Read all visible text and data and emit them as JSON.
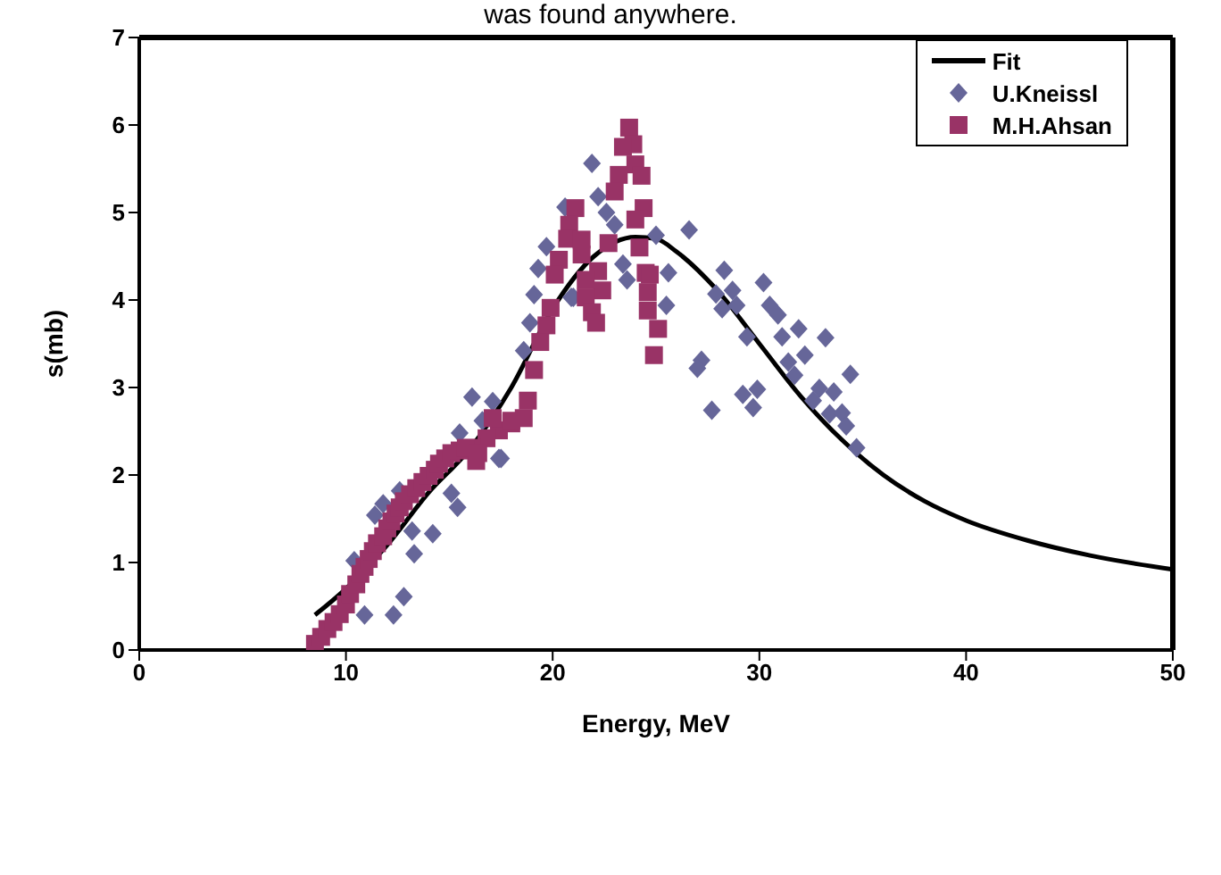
{
  "chart_data": {
    "type": "scatter",
    "title": "was found anywhere.",
    "xlabel": "Energy, MeV",
    "ylabel": "s(mb)",
    "xlim": [
      0,
      50
    ],
    "xticks": [
      0,
      10,
      20,
      30,
      40,
      50
    ],
    "ylim": [
      0,
      7
    ],
    "yticks": [
      0,
      1,
      2,
      3,
      4,
      5,
      6,
      7
    ],
    "grid": false,
    "legend": "top right",
    "series": [
      {
        "name": "Fit",
        "type": "line",
        "color": "#000000",
        "marker": "none",
        "line_style": "solid",
        "x": [
          8.5,
          10,
          12,
          14,
          16,
          18,
          20,
          22,
          24,
          25,
          26,
          28,
          30,
          32,
          34,
          36,
          38,
          40,
          43,
          46,
          50
        ],
        "values": [
          0.4,
          0.7,
          1.2,
          1.8,
          2.3,
          3.0,
          3.9,
          4.5,
          4.72,
          4.7,
          4.55,
          4.1,
          3.5,
          2.9,
          2.4,
          2.0,
          1.7,
          1.48,
          1.25,
          1.08,
          0.92
        ]
      },
      {
        "name": "U.Kneissl",
        "color": "#666699",
        "marker": "diamond",
        "x": [
          21.9,
          22.2,
          22.6,
          23.0,
          20.6,
          19.7,
          19.3,
          19.1,
          18.9,
          18.6,
          16.1,
          17.1,
          17.5,
          21.0,
          23.4,
          23.6,
          25.0,
          26.6,
          25.6,
          25.5,
          27.2,
          27.0,
          27.7,
          28.3,
          27.9,
          28.7,
          28.2,
          28.9,
          30.2,
          30.5,
          30.9,
          29.4,
          31.1,
          31.9,
          33.2,
          32.2,
          31.4,
          31.7,
          34.4,
          29.2,
          29.9,
          29.7,
          32.9,
          33.6,
          32.6,
          33.4,
          34.0,
          34.2,
          34.7,
          16.6,
          15.5,
          17.4,
          15.1,
          15.4,
          12.6,
          11.8,
          11.4,
          13.2,
          14.2,
          13.3,
          10.4,
          12.8,
          10.9,
          12.3,
          20.9
        ],
        "values": [
          5.56,
          5.18,
          5.0,
          4.86,
          5.06,
          4.61,
          4.36,
          4.06,
          3.74,
          3.42,
          2.89,
          2.84,
          2.19,
          4.03,
          4.41,
          4.23,
          4.74,
          4.8,
          4.31,
          3.94,
          3.31,
          3.22,
          2.74,
          4.34,
          4.07,
          4.11,
          3.9,
          3.94,
          4.2,
          3.94,
          3.83,
          3.58,
          3.58,
          3.67,
          3.57,
          3.37,
          3.29,
          3.14,
          3.15,
          2.92,
          2.98,
          2.77,
          2.99,
          2.95,
          2.85,
          2.7,
          2.71,
          2.56,
          2.31,
          2.62,
          2.48,
          2.19,
          1.79,
          1.63,
          1.82,
          1.67,
          1.54,
          1.36,
          1.33,
          1.1,
          1.02,
          0.61,
          0.4,
          0.4,
          4.03
        ]
      },
      {
        "name": "M.H.Ahsan",
        "color": "#993366",
        "marker": "square",
        "x": [
          23.7,
          23.9,
          23.4,
          24.0,
          24.3,
          23.2,
          23.0,
          24.4,
          24.0,
          21.1,
          20.8,
          20.7,
          21.4,
          22.7,
          24.2,
          20.3,
          21.4,
          20.1,
          22.2,
          24.5,
          24.7,
          21.6,
          22.4,
          24.6,
          21.6,
          21.9,
          24.6,
          22.1,
          25.1,
          19.9,
          19.7,
          19.4,
          24.9,
          19.1,
          18.8,
          18.6,
          18.0,
          17.4,
          16.8,
          16.1,
          16.3,
          8.5,
          8.8,
          9.1,
          9.4,
          9.7,
          10.0,
          10.2,
          10.5,
          10.7,
          10.9,
          11.1,
          11.3,
          11.5,
          11.8,
          12.0,
          12.2,
          12.4,
          12.6,
          12.8,
          13.1,
          13.4,
          13.7,
          14.0,
          14.3,
          14.5,
          14.8,
          15.1,
          15.5,
          15.8,
          16.4,
          17.1,
          18.0
        ],
        "values": [
          5.97,
          5.78,
          5.75,
          5.55,
          5.42,
          5.43,
          5.24,
          5.05,
          4.92,
          5.05,
          4.86,
          4.7,
          4.69,
          4.65,
          4.6,
          4.46,
          4.52,
          4.29,
          4.33,
          4.31,
          4.29,
          4.23,
          4.11,
          4.09,
          4.03,
          3.86,
          3.88,
          3.74,
          3.67,
          3.91,
          3.71,
          3.52,
          3.37,
          3.2,
          2.85,
          2.65,
          2.59,
          2.51,
          2.42,
          2.31,
          2.16,
          0.07,
          0.15,
          0.24,
          0.32,
          0.41,
          0.52,
          0.64,
          0.75,
          0.87,
          0.95,
          1.04,
          1.13,
          1.22,
          1.3,
          1.39,
          1.47,
          1.56,
          1.63,
          1.7,
          1.78,
          1.85,
          1.92,
          1.99,
          2.06,
          2.13,
          2.19,
          2.25,
          2.28,
          2.31,
          2.25,
          2.65,
          2.62
        ]
      }
    ]
  }
}
